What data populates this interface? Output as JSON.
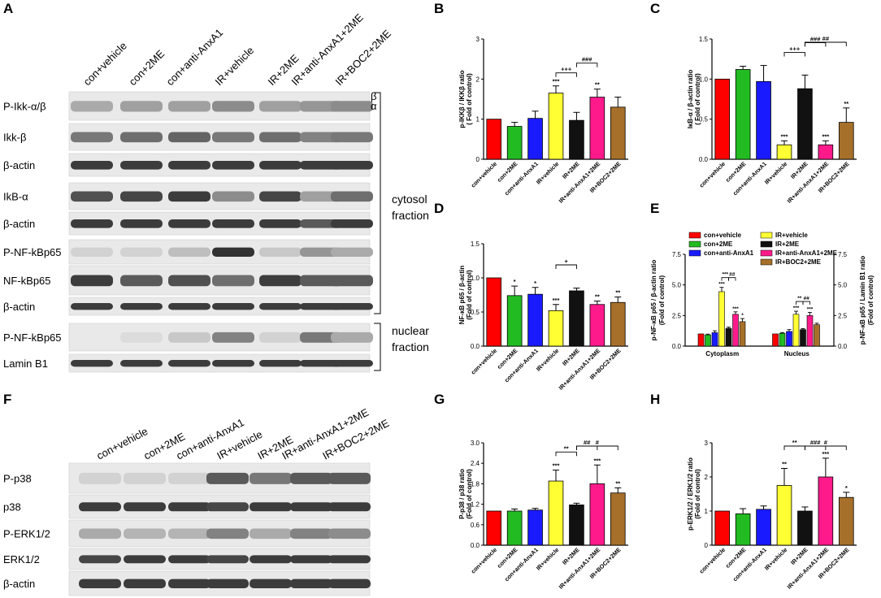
{
  "panel_labels": {
    "A": "A",
    "B": "B",
    "C": "C",
    "D": "D",
    "E": "E",
    "F": "F",
    "G": "G",
    "H": "H"
  },
  "blot_A": {
    "lanes": [
      "con+vehicle",
      "con+2ME",
      "con+anti-AnxA1",
      "IR+vehicle",
      "IR+2ME",
      "IR+anti-AnxA1+2ME",
      "IR+BOC2+2ME"
    ],
    "rows": [
      "P-Ikk-α/β",
      "Ikk-β",
      "β-actin",
      "IkB-α",
      "β-actin",
      "P-NF-kBp65",
      "NF-kBp65",
      "β-actin",
      "P-NF-kBp65",
      "Lamin B1"
    ],
    "band_markers": [
      "β",
      "α"
    ],
    "cytosol_label": [
      "cytosol",
      "fraction"
    ],
    "nuclear_label": [
      "nuclear",
      "fraction"
    ]
  },
  "blot_F": {
    "lanes": [
      "con+vehicle",
      "con+2ME",
      "con+anti-AnxA1",
      "IR+vehicle",
      "IR+2ME",
      "IR+anti-AnxA1+2ME",
      "IR+BOC2+2ME"
    ],
    "rows": [
      "P-p38",
      "p38",
      "P-ERK1/2",
      "ERK1/2",
      "β-actin"
    ]
  },
  "colors": {
    "con+vehicle": "#ff0000",
    "con+2ME": "#22bb22",
    "con+anti-AnxA1": "#1a1aff",
    "IR+vehicle": "#ffff33",
    "IR+2ME": "#111111",
    "IR+anti-AnxA1+2ME": "#ff1a8c",
    "IR+BOC2+2ME": "#a6702a"
  },
  "chart_data": [
    {
      "id": "B",
      "type": "bar",
      "categories": [
        "con+vehicle",
        "con+2ME",
        "con+anti-AnxA1",
        "IR+vehicle",
        "IR+2ME",
        "IR+anti-AnxA1+2ME",
        "IR+BOC2+2ME"
      ],
      "values": [
        1.0,
        0.82,
        1.02,
        1.65,
        0.97,
        1.55,
        1.3
      ],
      "errors": [
        0.0,
        0.1,
        0.18,
        0.18,
        0.2,
        0.2,
        0.25
      ],
      "sig": [
        "",
        "",
        "",
        "***",
        "",
        "**",
        ""
      ],
      "ylabel": "p-IKKβ / IKKβ ratio",
      "ylabel2": "( Fold of control)",
      "ylim": [
        0,
        3
      ],
      "yticks": [
        "0",
        "1",
        "2",
        "3"
      ],
      "brackets": [
        {
          "from": 4,
          "to": 3,
          "label": "+++"
        },
        {
          "from": 4,
          "to": 5,
          "label": "###"
        }
      ]
    },
    {
      "id": "C",
      "type": "bar",
      "categories": [
        "con+vehicle",
        "con+2ME",
        "con+anti-AnxA1",
        "IR+vehicle",
        "IR+2ME",
        "IR+anti-AnxA1+2ME",
        "IR+BOC2+2ME"
      ],
      "values": [
        1.0,
        1.12,
        0.97,
        0.18,
        0.88,
        0.18,
        0.46
      ],
      "errors": [
        0.0,
        0.04,
        0.2,
        0.05,
        0.17,
        0.05,
        0.18
      ],
      "sig": [
        "",
        "",
        "",
        "***",
        "",
        "***",
        "**"
      ],
      "ylabel": "IκB-α / β-actin ratio",
      "ylabel2": "( Fold of control)",
      "ylim": [
        0,
        1.5
      ],
      "yticks": [
        "0.0",
        "0.5",
        "1.0",
        "1.5"
      ],
      "brackets": [
        {
          "from": 4,
          "to": 3,
          "label": "+++"
        },
        {
          "from": 4,
          "to": 5,
          "label": "###"
        },
        {
          "from": 4,
          "to": 6,
          "label": "##"
        }
      ]
    },
    {
      "id": "D",
      "type": "bar",
      "categories": [
        "con+vehicle",
        "con+2ME",
        "con+anti-AnxA1",
        "IR+vehicle",
        "IR+2ME",
        "IR+anti-AnxA1+2ME",
        "IR+BOC2+2ME"
      ],
      "values": [
        1.0,
        0.74,
        0.76,
        0.52,
        0.81,
        0.61,
        0.64
      ],
      "errors": [
        0.0,
        0.14,
        0.1,
        0.09,
        0.04,
        0.05,
        0.08
      ],
      "sig": [
        "",
        "*",
        "*",
        "***",
        "",
        "**",
        "**"
      ],
      "ylabel": "NF-κB p65 / β-actin",
      "ylabel2": "(Fold of control)",
      "ylim": [
        0,
        1.5
      ],
      "yticks": [
        "0.0",
        "0.5",
        "1.0",
        "1.5"
      ],
      "brackets": [
        {
          "from": 3,
          "to": 4,
          "label": "+"
        }
      ]
    },
    {
      "id": "E",
      "type": "bar",
      "groups": [
        "Cytoplasm",
        "Nucleus"
      ],
      "series": [
        {
          "name": "con+vehicle",
          "values": [
            1.0,
            1.0
          ],
          "errors": [
            0.0,
            0.0
          ],
          "sig": [
            "",
            ""
          ]
        },
        {
          "name": "con+2ME",
          "values": [
            0.92,
            1.05
          ],
          "errors": [
            0.06,
            0.06
          ],
          "sig": [
            "",
            ""
          ]
        },
        {
          "name": "con+anti-AnxA1",
          "values": [
            1.1,
            1.2
          ],
          "errors": [
            0.15,
            0.15
          ],
          "sig": [
            "",
            ""
          ]
        },
        {
          "name": "IR+vehicle",
          "values": [
            4.45,
            2.6
          ],
          "errors": [
            0.35,
            0.25
          ],
          "sig": [
            "***",
            "***"
          ]
        },
        {
          "name": "IR+2ME",
          "values": [
            1.45,
            1.35
          ],
          "errors": [
            0.1,
            0.08
          ],
          "sig": [
            "",
            ""
          ]
        },
        {
          "name": "IR+anti-AnxA1+2ME",
          "values": [
            2.6,
            2.5
          ],
          "errors": [
            0.2,
            0.25
          ],
          "sig": [
            "***",
            "***"
          ]
        },
        {
          "name": "IR+BOC2+2ME",
          "values": [
            2.0,
            1.75
          ],
          "errors": [
            0.25,
            0.12
          ],
          "sig": [
            "*",
            ""
          ]
        }
      ],
      "ylabel": "p-NF-κB p65 / β-actin ratio",
      "ylabel2": "(Fold of control)",
      "ylabel_right": "p-NF-κB p65 / Lamin B1 ratio",
      "ylabel_right2": "(Fold of control)",
      "ylim": [
        0,
        7.5
      ],
      "yticks": [
        "0.0",
        "2.5",
        "5.0",
        "7.5"
      ],
      "legend_position": "top",
      "brackets": [
        {
          "group": 0,
          "from": 4,
          "to": 3,
          "label": "***"
        },
        {
          "group": 0,
          "from": 4,
          "to": 5,
          "label": "##"
        },
        {
          "group": 1,
          "from": 4,
          "to": 3,
          "label": "**"
        },
        {
          "group": 1,
          "from": 4,
          "to": 5,
          "label": "##"
        }
      ]
    },
    {
      "id": "G",
      "type": "bar",
      "categories": [
        "con+vehicle",
        "con+2ME",
        "con+anti-AnxA1",
        "IR+vehicle",
        "IR+2ME",
        "IR+anti-AnxA1+2ME",
        "IR+BOC2+2ME"
      ],
      "values": [
        1.0,
        1.0,
        1.03,
        1.88,
        1.18,
        1.8,
        1.53
      ],
      "errors": [
        0.0,
        0.06,
        0.05,
        0.32,
        0.05,
        0.55,
        0.15
      ],
      "sig": [
        "",
        "",
        "",
        "***",
        "",
        "***",
        "**"
      ],
      "ylabel": "P-p38 / p38 ratio",
      "ylabel2": "(Fold of control)",
      "ylim": [
        0,
        3.0
      ],
      "yticks": [
        "0.0",
        "0.6",
        "1.2",
        "1.8",
        "2.4",
        "3.0"
      ],
      "brackets": [
        {
          "from": 4,
          "to": 3,
          "label": "**"
        },
        {
          "from": 4,
          "to": 5,
          "label": "##"
        },
        {
          "from": 4,
          "to": 6,
          "label": "#"
        }
      ]
    },
    {
      "id": "H",
      "type": "bar",
      "categories": [
        "con+vehicle",
        "con+2ME",
        "con+anti-AnxA1",
        "IR+vehicle",
        "IR+2ME",
        "IR+anti-AnxA1+2ME",
        "IR+BOC2+2ME"
      ],
      "values": [
        1.0,
        0.92,
        1.05,
        1.75,
        1.0,
        2.0,
        1.4
      ],
      "errors": [
        0.0,
        0.15,
        0.1,
        0.5,
        0.12,
        0.55,
        0.15
      ],
      "sig": [
        "",
        "",
        "",
        "**",
        "",
        "***",
        "*"
      ],
      "ylabel": "p-ERK1/2 / ERK1/2 ratio",
      "ylabel2": "(Fold of control)",
      "ylim": [
        0,
        3
      ],
      "yticks": [
        "0",
        "1",
        "2",
        "3"
      ],
      "brackets": [
        {
          "from": 4,
          "to": 3,
          "label": "**"
        },
        {
          "from": 4,
          "to": 5,
          "label": "###"
        },
        {
          "from": 4,
          "to": 6,
          "label": "#"
        }
      ]
    }
  ]
}
